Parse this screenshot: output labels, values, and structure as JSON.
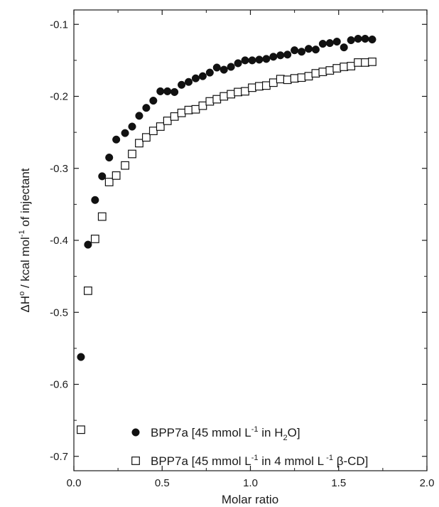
{
  "chart_data": {
    "type": "scatter",
    "title": "",
    "xlabel": "Molar ratio",
    "ylabel": {
      "main": "ΔH",
      "sup1": "o",
      "mid": " / kcal mol",
      "sup2": "-1",
      "end": " of injectant"
    },
    "xlim": [
      0.0,
      2.0
    ],
    "ylim": [
      -0.72,
      -0.08
    ],
    "x_ticks": [
      0.0,
      0.5,
      1.0,
      1.5,
      2.0
    ],
    "x_tick_labels": [
      "0.0",
      "0.5",
      "1.0",
      "1.5",
      "2.0"
    ],
    "y_ticks": [
      -0.7,
      -0.6,
      -0.5,
      -0.4,
      -0.3,
      -0.2,
      -0.1
    ],
    "y_tick_labels": [
      "-0.7",
      "-0.6",
      "-0.5",
      "-0.4",
      "-0.3",
      "-0.2",
      "-0.1"
    ],
    "grid": false,
    "legend_position": "bottom-left",
    "series": [
      {
        "marker": "filled-circle",
        "color": "#111111",
        "legend": {
          "a": "BPP7a [45 mmol L",
          "sup1": "-1",
          "b": " in H",
          "sub1": "2",
          "c": "O]"
        },
        "x": [
          0.04,
          0.08,
          0.12,
          0.16,
          0.2,
          0.24,
          0.29,
          0.33,
          0.37,
          0.41,
          0.45,
          0.49,
          0.53,
          0.57,
          0.61,
          0.65,
          0.69,
          0.73,
          0.77,
          0.81,
          0.85,
          0.89,
          0.93,
          0.97,
          1.01,
          1.05,
          1.09,
          1.13,
          1.17,
          1.21,
          1.25,
          1.29,
          1.33,
          1.37,
          1.41,
          1.45,
          1.49,
          1.53,
          1.57,
          1.61,
          1.65,
          1.69
        ],
        "y": [
          -0.562,
          -0.406,
          -0.344,
          -0.311,
          -0.285,
          -0.26,
          -0.251,
          -0.242,
          -0.227,
          -0.216,
          -0.206,
          -0.193,
          -0.193,
          -0.194,
          -0.184,
          -0.18,
          -0.175,
          -0.172,
          -0.167,
          -0.16,
          -0.163,
          -0.159,
          -0.154,
          -0.15,
          -0.15,
          -0.149,
          -0.148,
          -0.145,
          -0.143,
          -0.142,
          -0.136,
          -0.138,
          -0.134,
          -0.135,
          -0.127,
          -0.126,
          -0.124,
          -0.132,
          -0.122,
          -0.12,
          -0.12,
          -0.121
        ]
      },
      {
        "marker": "open-square",
        "color": "#111111",
        "legend": {
          "a": "BPP7a [45 mmol L",
          "sup1": "-1",
          "b": " in 4 mmol L",
          "sup2": " -1",
          "c": " β-CD]"
        },
        "x": [
          0.04,
          0.08,
          0.12,
          0.16,
          0.2,
          0.24,
          0.29,
          0.33,
          0.37,
          0.41,
          0.45,
          0.49,
          0.53,
          0.57,
          0.61,
          0.65,
          0.69,
          0.73,
          0.77,
          0.81,
          0.85,
          0.89,
          0.93,
          0.97,
          1.01,
          1.05,
          1.09,
          1.13,
          1.17,
          1.21,
          1.25,
          1.29,
          1.33,
          1.37,
          1.41,
          1.45,
          1.49,
          1.53,
          1.57,
          1.61,
          1.65,
          1.69
        ],
        "y": [
          -0.663,
          -0.47,
          -0.398,
          -0.367,
          -0.319,
          -0.31,
          -0.296,
          -0.28,
          -0.265,
          -0.257,
          -0.248,
          -0.242,
          -0.234,
          -0.228,
          -0.223,
          -0.219,
          -0.218,
          -0.213,
          -0.207,
          -0.204,
          -0.2,
          -0.197,
          -0.194,
          -0.193,
          -0.188,
          -0.186,
          -0.185,
          -0.181,
          -0.176,
          -0.177,
          -0.175,
          -0.174,
          -0.172,
          -0.168,
          -0.166,
          -0.164,
          -0.161,
          -0.159,
          -0.158,
          -0.153,
          -0.153,
          -0.152
        ]
      }
    ]
  }
}
